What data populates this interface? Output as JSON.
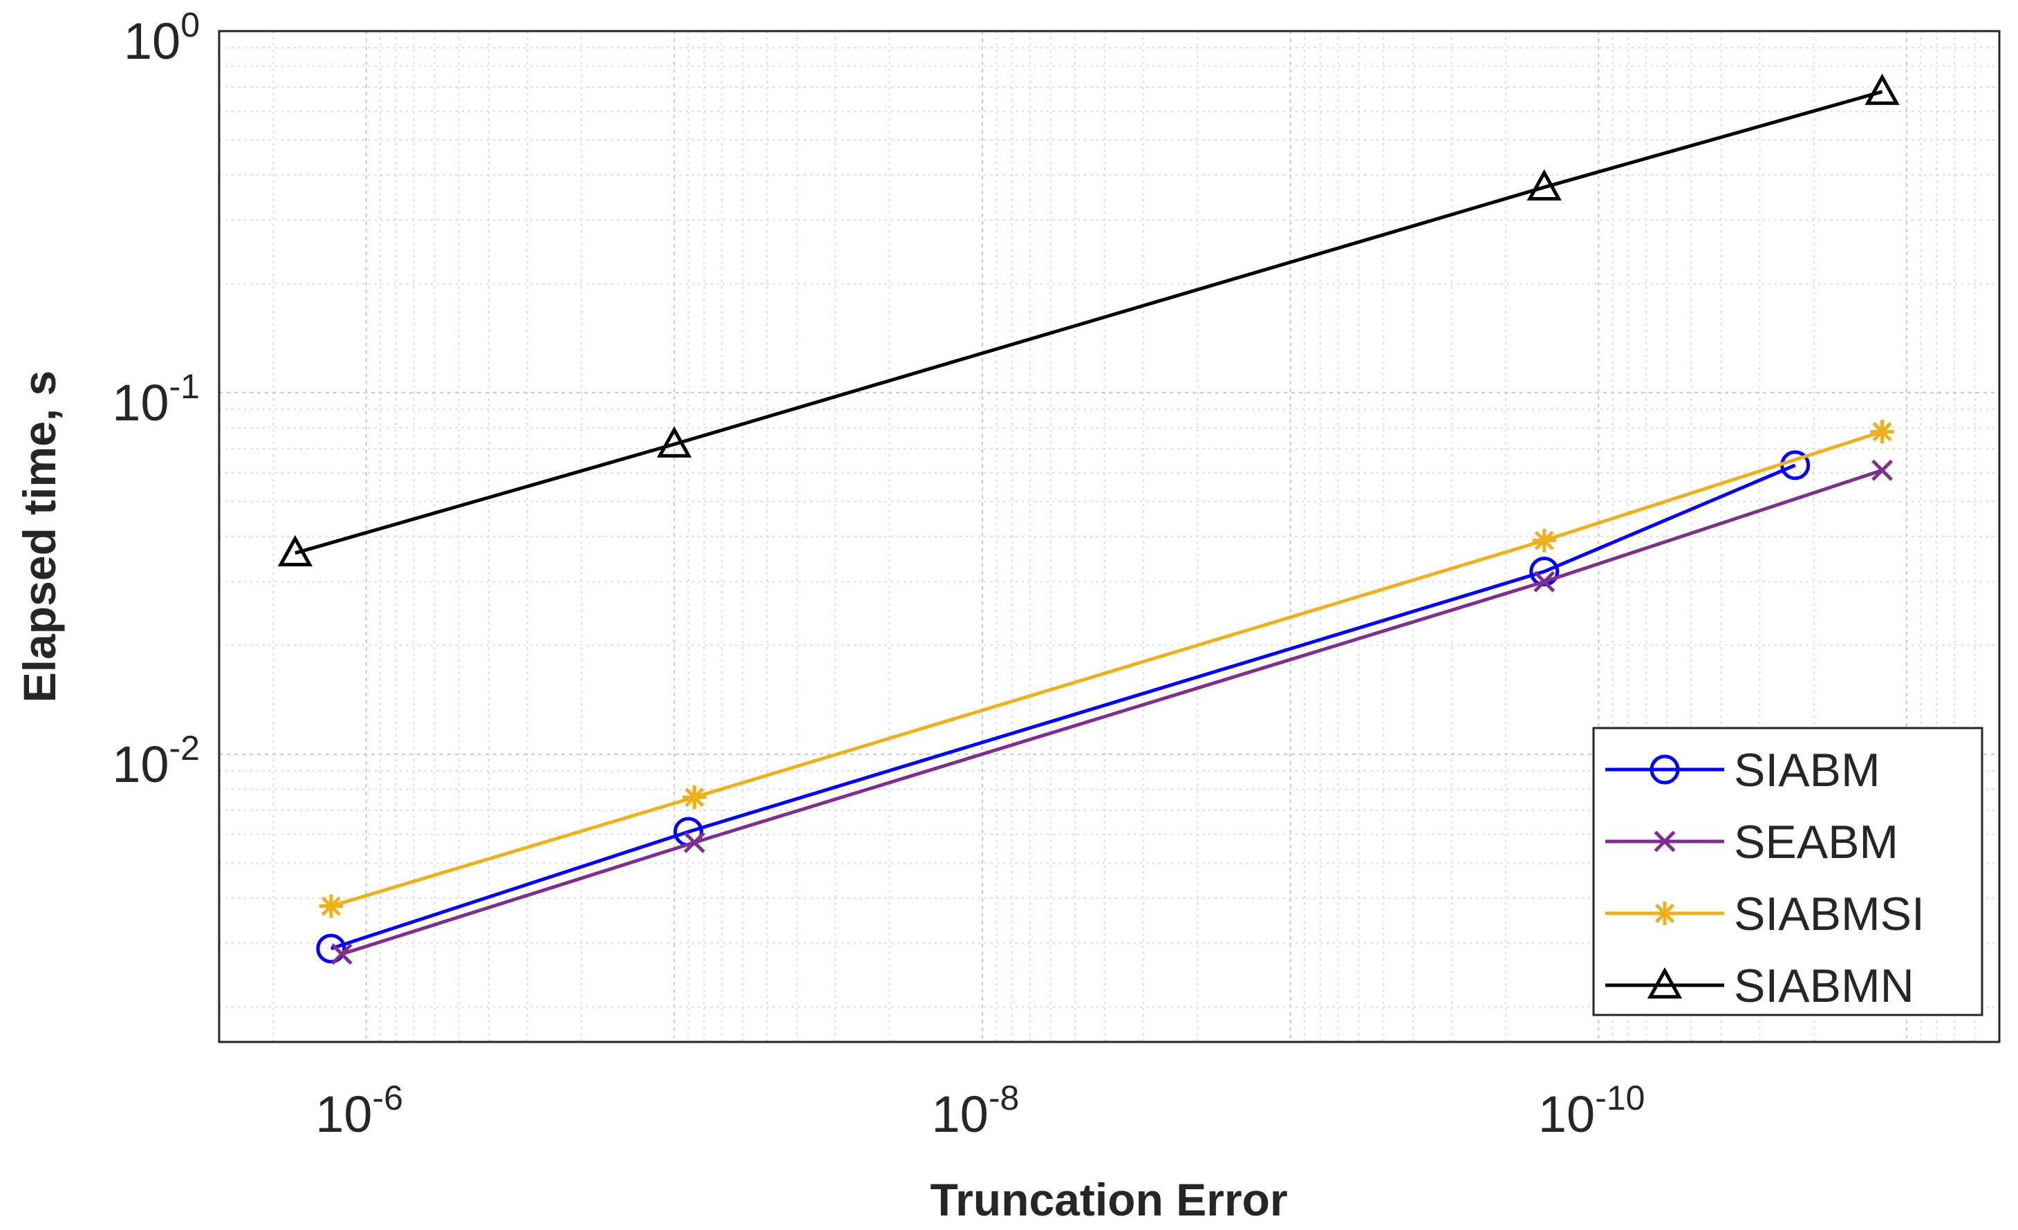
{
  "chart_data": {
    "type": "line",
    "xlabel": "Truncation Error",
    "ylabel": "Elapsed time, s",
    "xscale": "log",
    "yscale": "log",
    "x_reversed": true,
    "xlim": [
      3e-06,
      5e-12
    ],
    "ylim": [
      0.0016,
      1
    ],
    "grid": true,
    "legend_position": "bottom-right",
    "x_ticks": [
      {
        "value": 1e-06,
        "base": "10",
        "exp": "-6"
      },
      {
        "value": 1e-08,
        "base": "10",
        "exp": "-8"
      },
      {
        "value": 1e-10,
        "base": "10",
        "exp": "-10"
      }
    ],
    "y_ticks": [
      {
        "value": 1,
        "base": "10",
        "exp": "0"
      },
      {
        "value": 0.1,
        "base": "10",
        "exp": "-1"
      },
      {
        "value": 0.01,
        "base": "10",
        "exp": "-2"
      }
    ],
    "series": [
      {
        "name": "SIABM",
        "color": "#0000ff",
        "marker": "circle",
        "x": [
          1.3e-06,
          9e-08,
          1.5e-10,
          2.3e-11
        ],
        "y": [
          0.0029,
          0.0061,
          0.032,
          0.063
        ]
      },
      {
        "name": "SEABM",
        "color": "#7e2f8e",
        "marker": "x",
        "x": [
          1.2e-06,
          8.6e-08,
          1.5e-10,
          1.2e-11
        ],
        "y": [
          0.0028,
          0.0057,
          0.03,
          0.061
        ]
      },
      {
        "name": "SIABMSI",
        "color": "#edb120",
        "marker": "asterisk",
        "x": [
          1.3e-06,
          8.6e-08,
          1.5e-10,
          1.2e-11
        ],
        "y": [
          0.0038,
          0.0076,
          0.039,
          0.078
        ]
      },
      {
        "name": "SIABMN",
        "color": "#000000",
        "marker": "triangle",
        "x": [
          1.7e-06,
          1e-07,
          1.5e-10,
          1.2e-11
        ],
        "y": [
          0.036,
          0.072,
          0.37,
          0.68
        ]
      }
    ]
  }
}
